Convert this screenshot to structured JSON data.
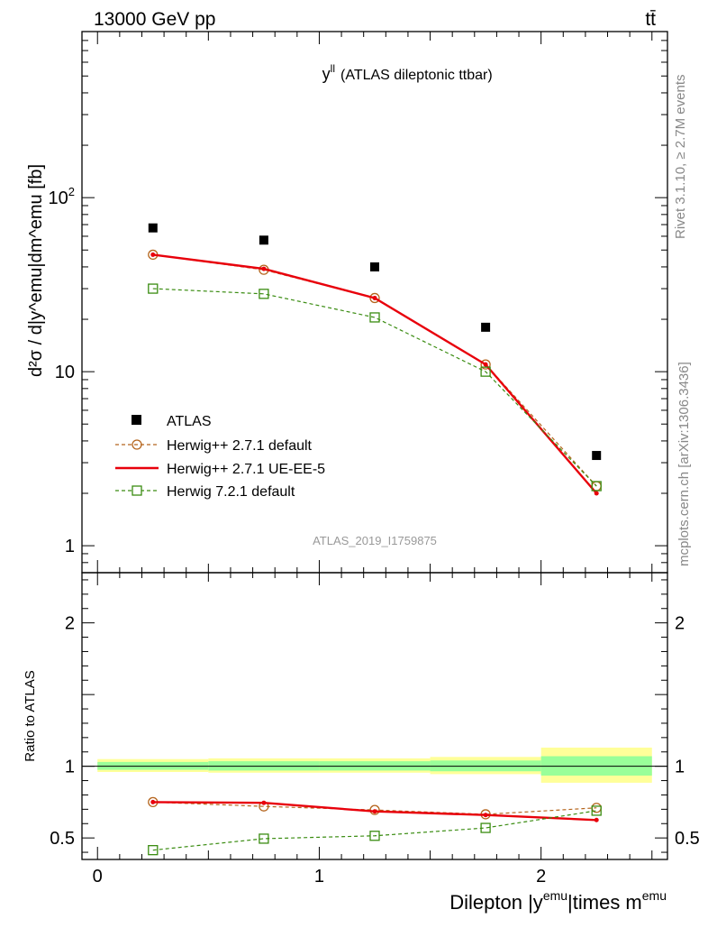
{
  "header": {
    "left": "13000 GeV pp",
    "right": "tt̄"
  },
  "side_text": {
    "top": "Rivet 3.1.10, ≥ 2.7M events",
    "bottom": "mcplots.cern.ch [arXiv:1306.3436]"
  },
  "colors": {
    "atlas": "#000000",
    "h271": "#b5651d",
    "ueee5": "#e8000b",
    "h721": "#3a8c11",
    "band_outer": "#ffff99",
    "band_inner": "#99ff99"
  },
  "chart_data": [
    {
      "type": "scatter",
      "title": "y",
      "title_sup": "ll",
      "subtitle": "(ATLAS dileptonic ttbar)",
      "ylabel": "d²σ / d|y^emu|dm^emu [fb]",
      "watermark": "ATLAS_2019_I1759875",
      "yscale": "log",
      "ylim": [
        0.7,
        900
      ],
      "xlim": [
        -0.07,
        2.57
      ],
      "ytick_labels": [
        {
          "v": 1,
          "label": "1"
        },
        {
          "v": 10,
          "label": "10"
        },
        {
          "v": 100,
          "label": "10",
          "sup": "2"
        }
      ],
      "x": [
        0.25,
        0.75,
        1.25,
        1.75,
        2.25
      ],
      "series": [
        {
          "name": "ATLAS",
          "values": [
            67,
            57,
            40,
            18,
            3.3
          ]
        },
        {
          "name": "Herwig++ 2.7.1 default",
          "values": [
            47,
            38.5,
            26.5,
            11,
            2.2
          ]
        },
        {
          "name": "Herwig++ 2.7.1 UE-EE-5",
          "values": [
            47,
            39,
            26.5,
            11,
            2.0
          ]
        },
        {
          "name": "Herwig 7.2.1 default",
          "values": [
            30,
            28,
            20.5,
            10,
            2.2
          ]
        }
      ]
    },
    {
      "type": "line",
      "ylabel": "Ratio to ATLAS",
      "xlabel": "Dilepton |y",
      "xlabel_sup1": "emu",
      "xlabel_mid": "|times m",
      "xlabel_sup2": "emu",
      "ylim": [
        0.35,
        2.35
      ],
      "xlim": [
        -0.07,
        2.57
      ],
      "ytick_labels": [
        0.5,
        1,
        2
      ],
      "xtick_labels": [
        0,
        1,
        2
      ],
      "band_bins": [
        [
          0,
          0.5
        ],
        [
          0.5,
          1.0
        ],
        [
          1.0,
          1.5
        ],
        [
          1.5,
          2.0
        ],
        [
          2.0,
          2.5
        ]
      ],
      "band_outer": [
        [
          0.96,
          1.05
        ],
        [
          0.955,
          1.055
        ],
        [
          0.955,
          1.055
        ],
        [
          0.945,
          1.065
        ],
        [
          0.885,
          1.13
        ]
      ],
      "band_inner": [
        [
          0.975,
          1.03
        ],
        [
          0.97,
          1.035
        ],
        [
          0.97,
          1.035
        ],
        [
          0.965,
          1.04
        ],
        [
          0.935,
          1.07
        ]
      ],
      "x": [
        0.25,
        0.75,
        1.25,
        1.75,
        2.25
      ],
      "series": [
        {
          "name": "Herwig++ 2.7.1 default",
          "values": [
            0.75,
            0.72,
            0.695,
            0.665,
            0.71
          ]
        },
        {
          "name": "Herwig++ 2.7.1 UE-EE-5",
          "values": [
            0.75,
            0.745,
            0.685,
            0.66,
            0.625
          ]
        },
        {
          "name": "Herwig 7.2.1 default",
          "values": [
            0.415,
            0.495,
            0.515,
            0.57,
            0.69
          ]
        }
      ]
    }
  ]
}
